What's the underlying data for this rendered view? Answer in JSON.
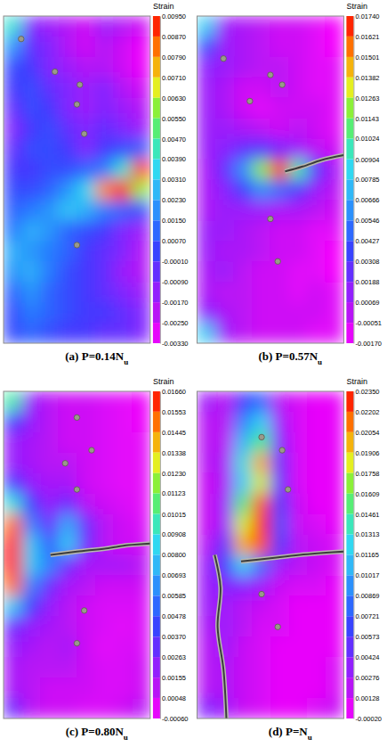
{
  "chart_data": [
    {
      "type": "heatmap",
      "title": "(a) P=0.14Nu",
      "tick_labels": false,
      "colorbar": {
        "label": "Strain",
        "zlim": [
          -0.0033,
          0.0095
        ],
        "zticks": [
          {
            "value": 0.0095,
            "label": "0.00950"
          },
          {
            "value": 0.0087,
            "label": "0.00870"
          },
          {
            "value": 0.0079,
            "label": "0.00790"
          },
          {
            "value": 0.0071,
            "label": "0.00710"
          },
          {
            "value": 0.0063,
            "label": "0.00630"
          },
          {
            "value": 0.0055,
            "label": "0.00550"
          },
          {
            "value": 0.0047,
            "label": "0.00470"
          },
          {
            "value": 0.0039,
            "label": "0.00390"
          },
          {
            "value": 0.0031,
            "label": "0.00310"
          },
          {
            "value": 0.0023,
            "label": "0.00230"
          },
          {
            "value": 0.0015,
            "label": "0.00150"
          },
          {
            "value": 0.0007,
            "label": "0.00070"
          },
          {
            "value": -0.0001,
            "label": "-0.00010"
          },
          {
            "value": -0.0009,
            "label": "-0.00090"
          },
          {
            "value": -0.0017,
            "label": "-0.00170"
          },
          {
            "value": -0.0025,
            "label": "-0.00250"
          },
          {
            "value": -0.0033,
            "label": "-0.00330"
          }
        ]
      },
      "cells": [
        [
          0.004,
          -0.001,
          -0.0015,
          -0.002,
          -0.0025,
          -0.0015,
          -0.002,
          -0.0025
        ],
        [
          0.002,
          -0.0005,
          -0.001,
          -0.002,
          -0.0025,
          -0.002,
          -0.0025,
          -0.003
        ],
        [
          0.0005,
          0.0,
          -0.001,
          -0.0015,
          -0.002,
          -0.002,
          -0.0025,
          -0.003
        ],
        [
          0.0,
          0.0005,
          -0.0005,
          -0.001,
          -0.0015,
          -0.001,
          -0.002,
          -0.0025
        ],
        [
          -0.0005,
          0.0005,
          0.0,
          -0.001,
          -0.0015,
          -0.001,
          -0.0015,
          -0.002
        ],
        [
          -0.001,
          0.0,
          0.0005,
          -0.0005,
          -0.001,
          -0.0005,
          -0.001,
          -0.0015
        ],
        [
          -0.0005,
          0.0005,
          0.0005,
          0.0,
          -0.001,
          0.0,
          0.0005,
          0.001
        ],
        [
          0.0,
          0.0,
          0.0005,
          0.0005,
          0.001,
          0.0015,
          0.004,
          0.009
        ],
        [
          0.0005,
          0.0005,
          0.001,
          0.002,
          0.0035,
          0.008,
          0.0095,
          0.006
        ],
        [
          0.001,
          0.0015,
          0.002,
          0.003,
          0.0025,
          0.0015,
          0.001,
          0.0005
        ],
        [
          0.0015,
          0.0025,
          0.002,
          0.001,
          0.0005,
          0.0,
          -0.001,
          -0.0015
        ],
        [
          0.0025,
          0.002,
          0.0015,
          0.001,
          0.0,
          -0.0005,
          -0.001,
          -0.002
        ],
        [
          0.002,
          0.0025,
          0.0015,
          0.0005,
          0.0,
          -0.0005,
          -0.0015,
          -0.002
        ],
        [
          0.001,
          0.002,
          0.001,
          0.0005,
          0.0,
          -0.0005,
          -0.001,
          -0.0015
        ],
        [
          0.0005,
          0.0015,
          0.001,
          0.0005,
          0.0,
          0.0,
          -0.0005,
          -0.001
        ],
        [
          0.0005,
          0.001,
          0.0005,
          0.0,
          0.0,
          -0.0005,
          -0.0005,
          -0.001
        ]
      ]
    },
    {
      "type": "heatmap",
      "title": "(b) P=0.57Nu",
      "tick_labels": false,
      "colorbar": {
        "label": "Strain",
        "zlim": [
          -0.0017,
          0.0174
        ],
        "zticks": [
          {
            "value": 0.0174,
            "label": "0.01740"
          },
          {
            "value": 0.01621,
            "label": "0.01621"
          },
          {
            "value": 0.01501,
            "label": "0.01501"
          },
          {
            "value": 0.01382,
            "label": "0.01382"
          },
          {
            "value": 0.01263,
            "label": "0.01263"
          },
          {
            "value": 0.01143,
            "label": "0.01143"
          },
          {
            "value": 0.01024,
            "label": "0.01024"
          },
          {
            "value": 0.00904,
            "label": "0.00904"
          },
          {
            "value": 0.00785,
            "label": "0.00785"
          },
          {
            "value": 0.00666,
            "label": "0.00666"
          },
          {
            "value": 0.00546,
            "label": "0.00546"
          },
          {
            "value": 0.00427,
            "label": "0.00427"
          },
          {
            "value": 0.00308,
            "label": "0.00308"
          },
          {
            "value": 0.00188,
            "label": "0.00188"
          },
          {
            "value": 0.00069,
            "label": "0.00069"
          },
          {
            "value": -0.00051,
            "label": "-0.00051"
          },
          {
            "value": -0.0017,
            "label": "-0.00170"
          }
        ]
      },
      "cells": [
        [
          0.008,
          0.001,
          0.0005,
          0.0,
          -0.0005,
          -0.0005,
          -0.001,
          -0.0015
        ],
        [
          0.004,
          0.001,
          0.0005,
          0.0,
          -0.0005,
          -0.0005,
          -0.001,
          -0.0015
        ],
        [
          0.0015,
          0.001,
          0.0005,
          0.0,
          0.0,
          -0.0005,
          -0.001,
          -0.001
        ],
        [
          0.001,
          0.0005,
          -0.0005,
          -0.0005,
          0.0,
          -0.0005,
          -0.001,
          -0.001
        ],
        [
          0.001,
          0.0005,
          -0.0005,
          -0.001,
          -0.0005,
          -0.0005,
          -0.0005,
          -0.001
        ],
        [
          0.001,
          0.001,
          0.0005,
          0.0,
          -0.0005,
          0.0,
          -0.0005,
          -0.001
        ],
        [
          0.001,
          0.0015,
          0.0025,
          0.003,
          0.002,
          0.001,
          0.0,
          -0.0005
        ],
        [
          0.0005,
          0.0025,
          0.006,
          0.012,
          0.017,
          0.01,
          0.003,
          0.0005
        ],
        [
          0.0005,
          0.0015,
          0.0035,
          0.006,
          0.005,
          0.003,
          0.001,
          0.0
        ],
        [
          0.0005,
          0.001,
          0.001,
          0.001,
          0.0005,
          0.0005,
          0.0,
          -0.0005
        ],
        [
          0.001,
          0.001,
          0.0005,
          0.0,
          -0.0005,
          -0.0005,
          -0.001,
          -0.001
        ],
        [
          0.001,
          0.0005,
          0.0005,
          0.0,
          -0.0005,
          -0.0005,
          -0.001,
          -0.0015
        ],
        [
          0.0005,
          0.001,
          0.0,
          -0.0005,
          -0.0005,
          -0.001,
          -0.001,
          -0.0015
        ],
        [
          0.0005,
          0.0,
          0.0,
          -0.0005,
          -0.0005,
          -0.001,
          -0.0005,
          -0.001
        ],
        [
          0.0015,
          0.0005,
          0.0,
          -0.0005,
          -0.0005,
          -0.0005,
          -0.0005,
          -0.001
        ],
        [
          0.008,
          0.001,
          0.0,
          -0.0005,
          -0.0005,
          -0.0005,
          -0.001,
          -0.001
        ]
      ]
    },
    {
      "type": "heatmap",
      "title": "(c) P=0.80Nu",
      "tick_labels": false,
      "colorbar": {
        "label": "Strain",
        "zlim": [
          -0.0006,
          0.0166
        ],
        "zticks": [
          {
            "value": 0.0166,
            "label": "0.01660"
          },
          {
            "value": 0.01553,
            "label": "0.01553"
          },
          {
            "value": 0.01445,
            "label": "0.01445"
          },
          {
            "value": 0.01338,
            "label": "0.01338"
          },
          {
            "value": 0.0123,
            "label": "0.01230"
          },
          {
            "value": 0.01123,
            "label": "0.01123"
          },
          {
            "value": 0.01015,
            "label": "0.01015"
          },
          {
            "value": 0.00908,
            "label": "0.00908"
          },
          {
            "value": 0.008,
            "label": "0.00800"
          },
          {
            "value": 0.00693,
            "label": "0.00693"
          },
          {
            "value": 0.00585,
            "label": "0.00585"
          },
          {
            "value": 0.00478,
            "label": "0.00478"
          },
          {
            "value": 0.0037,
            "label": "0.00370"
          },
          {
            "value": 0.00263,
            "label": "0.00263"
          },
          {
            "value": 0.00155,
            "label": "0.00155"
          },
          {
            "value": 0.00048,
            "label": "0.00048"
          },
          {
            "value": -0.0006,
            "label": "-0.00060"
          }
        ]
      },
      "cells": [
        [
          0.01,
          0.002,
          0.001,
          0.0005,
          0.0005,
          0.0002,
          0.0,
          -0.0002
        ],
        [
          0.004,
          0.002,
          0.001,
          0.0005,
          0.0005,
          0.0002,
          0.0,
          -0.0002
        ],
        [
          0.002,
          0.0015,
          0.001,
          0.0005,
          0.0005,
          0.0002,
          0.0,
          0.0
        ],
        [
          0.002,
          0.0015,
          0.001,
          0.001,
          0.0005,
          0.0002,
          0.0,
          0.0
        ],
        [
          0.004,
          0.002,
          0.0015,
          0.0015,
          0.0005,
          0.0002,
          0.0,
          0.0
        ],
        [
          0.009,
          0.004,
          0.002,
          0.003,
          0.001,
          0.0005,
          0.0002,
          0.0
        ],
        [
          0.015,
          0.006,
          0.003,
          0.007,
          0.003,
          0.001,
          0.0005,
          0.0002
        ],
        [
          0.0165,
          0.008,
          0.005,
          0.008,
          0.003,
          0.001,
          0.0005,
          0.0005
        ],
        [
          0.0165,
          0.008,
          0.006,
          0.003,
          0.0015,
          0.0015,
          0.0015,
          0.001
        ],
        [
          0.015,
          0.006,
          0.003,
          0.0015,
          0.001,
          0.0005,
          0.0005,
          0.0005
        ],
        [
          0.008,
          0.004,
          0.002,
          0.001,
          0.0005,
          0.0002,
          0.0002,
          0.0002
        ],
        [
          0.003,
          0.002,
          0.0015,
          0.001,
          0.0005,
          0.0002,
          0.0,
          0.0002
        ],
        [
          0.002,
          0.0015,
          0.001,
          0.0015,
          0.0005,
          0.0,
          0.0002,
          0.0002
        ],
        [
          0.0015,
          0.001,
          0.001,
          0.001,
          0.0005,
          0.0002,
          0.0002,
          0.0005
        ],
        [
          0.0015,
          0.001,
          0.0005,
          0.0005,
          0.0005,
          0.0002,
          0.0002,
          0.0005
        ],
        [
          0.003,
          0.001,
          0.0005,
          0.0005,
          0.0002,
          0.0002,
          0.0005,
          0.001
        ]
      ]
    },
    {
      "type": "heatmap",
      "title": "(d) P=Nu",
      "tick_labels": false,
      "colorbar": {
        "label": "Strain",
        "zlim": [
          -0.0002,
          0.0235
        ],
        "zticks": [
          {
            "value": 0.0235,
            "label": "0.02350"
          },
          {
            "value": 0.02202,
            "label": "0.02202"
          },
          {
            "value": 0.02054,
            "label": "0.02054"
          },
          {
            "value": 0.01906,
            "label": "0.01906"
          },
          {
            "value": 0.01758,
            "label": "0.01758"
          },
          {
            "value": 0.01609,
            "label": "0.01609"
          },
          {
            "value": 0.01461,
            "label": "0.01461"
          },
          {
            "value": 0.01313,
            "label": "0.01313"
          },
          {
            "value": 0.01165,
            "label": "0.01165"
          },
          {
            "value": 0.01017,
            "label": "0.01017"
          },
          {
            "value": 0.00869,
            "label": "0.00869"
          },
          {
            "value": 0.00721,
            "label": "0.00721"
          },
          {
            "value": 0.00573,
            "label": "0.00573"
          },
          {
            "value": 0.00424,
            "label": "0.00424"
          },
          {
            "value": 0.00276,
            "label": "0.00276"
          },
          {
            "value": 0.00128,
            "label": "0.00128"
          },
          {
            "value": -0.0002,
            "label": "-0.00020"
          }
        ]
      },
      "cells": [
        [
          0.003,
          0.002,
          0.006,
          0.008,
          0.002,
          0.001,
          0.0005,
          0.0005
        ],
        [
          0.002,
          0.002,
          0.009,
          0.012,
          0.003,
          0.001,
          0.0005,
          0.0005
        ],
        [
          0.002,
          0.002,
          0.011,
          0.015,
          0.004,
          0.001,
          0.0005,
          0.0005
        ],
        [
          0.002,
          0.0025,
          0.013,
          0.02,
          0.005,
          0.001,
          0.0005,
          0.0005
        ],
        [
          0.0015,
          0.0025,
          0.012,
          0.018,
          0.005,
          0.001,
          0.0005,
          0.0005
        ],
        [
          0.0015,
          0.003,
          0.015,
          0.022,
          0.006,
          0.0015,
          0.0005,
          0.0005
        ],
        [
          0.0015,
          0.003,
          0.018,
          0.0235,
          0.007,
          0.0015,
          0.001,
          0.0005
        ],
        [
          0.002,
          0.005,
          0.02,
          0.022,
          0.006,
          0.002,
          0.0015,
          0.001
        ],
        [
          0.003,
          0.006,
          0.012,
          0.008,
          0.003,
          0.002,
          0.0015,
          0.001
        ],
        [
          0.003,
          0.004,
          0.004,
          0.003,
          0.0015,
          0.001,
          0.001,
          0.0005
        ],
        [
          0.003,
          0.003,
          0.002,
          0.0015,
          0.001,
          0.0005,
          0.0005,
          0.0005
        ],
        [
          0.0025,
          0.003,
          0.002,
          0.001,
          0.001,
          0.0005,
          0.0005,
          0.0005
        ],
        [
          0.002,
          0.003,
          0.0015,
          0.001,
          0.0005,
          0.0005,
          0.0005,
          0.0005
        ],
        [
          0.002,
          0.0025,
          0.0015,
          0.001,
          0.0005,
          0.0005,
          0.0005,
          0.001
        ],
        [
          0.002,
          0.0025,
          0.0015,
          0.001,
          0.0005,
          0.0005,
          0.0005,
          0.001
        ],
        [
          0.004,
          0.003,
          0.0015,
          0.001,
          0.0005,
          0.0005,
          0.001,
          0.0015
        ]
      ]
    }
  ]
}
